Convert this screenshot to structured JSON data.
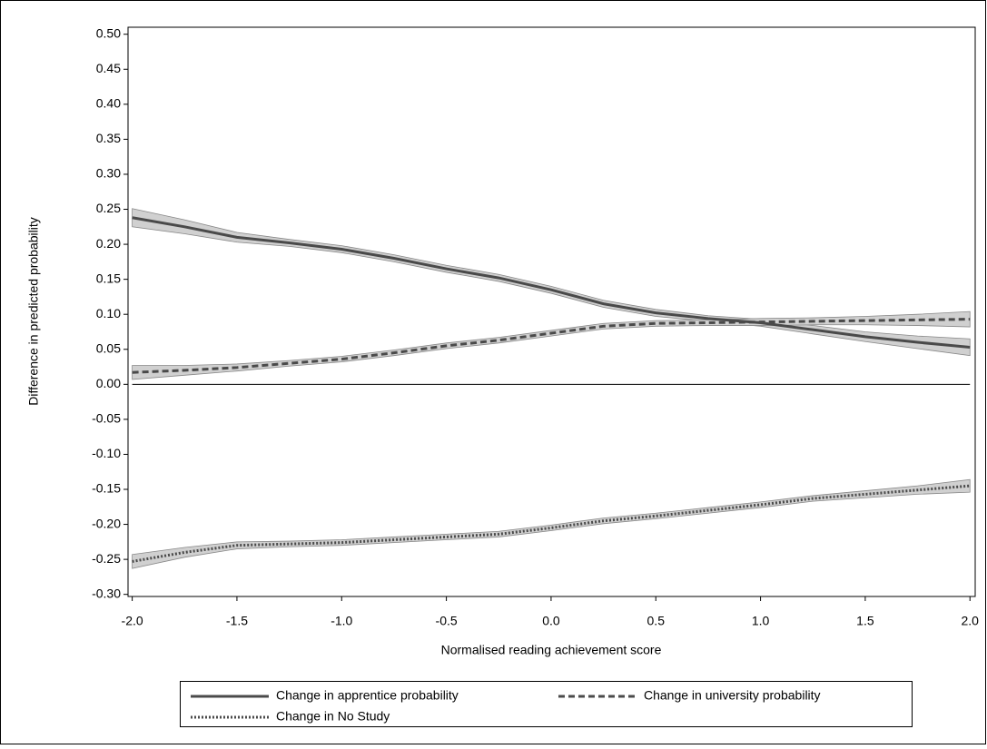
{
  "chart_data": {
    "type": "line",
    "x_label": "Normalised reading achievement score",
    "y_label": "Difference in predicted probability",
    "x": [
      -2,
      -1.75,
      -1.5,
      -1.25,
      -1,
      -0.75,
      -0.5,
      -0.25,
      0,
      0.25,
      0.5,
      0.75,
      1,
      1.25,
      1.5,
      1.75,
      2
    ],
    "series": [
      {
        "name": "Change in apprentice probability",
        "color": "#4a4a4a",
        "dash": "solid",
        "values": [
          0.238,
          0.225,
          0.21,
          0.202,
          0.193,
          0.18,
          0.165,
          0.152,
          0.135,
          0.115,
          0.102,
          0.094,
          0.088,
          0.078,
          0.068,
          0.06,
          0.053
        ],
        "lower": [
          0.225,
          0.215,
          0.203,
          0.197,
          0.188,
          0.175,
          0.16,
          0.147,
          0.13,
          0.11,
          0.097,
          0.09,
          0.083,
          0.072,
          0.061,
          0.051,
          0.041
        ],
        "upper": [
          0.251,
          0.235,
          0.217,
          0.207,
          0.198,
          0.185,
          0.17,
          0.157,
          0.14,
          0.12,
          0.107,
          0.098,
          0.093,
          0.084,
          0.075,
          0.069,
          0.065
        ]
      },
      {
        "name": "Change in university probability",
        "color": "#4a4a4a",
        "dash": "dashed",
        "values": [
          0.017,
          0.02,
          0.024,
          0.03,
          0.036,
          0.045,
          0.055,
          0.063,
          0.073,
          0.083,
          0.087,
          0.088,
          0.089,
          0.09,
          0.091,
          0.092,
          0.093
        ],
        "lower": [
          0.007,
          0.013,
          0.019,
          0.026,
          0.032,
          0.041,
          0.051,
          0.059,
          0.069,
          0.079,
          0.083,
          0.084,
          0.084,
          0.085,
          0.085,
          0.084,
          0.082
        ],
        "upper": [
          0.027,
          0.027,
          0.029,
          0.034,
          0.04,
          0.049,
          0.059,
          0.067,
          0.077,
          0.087,
          0.091,
          0.092,
          0.094,
          0.095,
          0.097,
          0.1,
          0.104
        ]
      },
      {
        "name": "Change in No Study",
        "color": "#4a4a4a",
        "dash": "dotted",
        "values": [
          -0.253,
          -0.24,
          -0.23,
          -0.228,
          -0.226,
          -0.222,
          -0.218,
          -0.214,
          -0.205,
          -0.195,
          -0.188,
          -0.18,
          -0.172,
          -0.163,
          -0.157,
          -0.151,
          -0.145
        ],
        "lower": [
          -0.263,
          -0.247,
          -0.235,
          -0.232,
          -0.23,
          -0.226,
          -0.222,
          -0.218,
          -0.209,
          -0.199,
          -0.192,
          -0.184,
          -0.176,
          -0.167,
          -0.162,
          -0.157,
          -0.154
        ],
        "upper": [
          -0.243,
          -0.233,
          -0.225,
          -0.224,
          -0.222,
          -0.218,
          -0.214,
          -0.21,
          -0.201,
          -0.191,
          -0.184,
          -0.176,
          -0.168,
          -0.159,
          -0.152,
          -0.145,
          -0.136
        ]
      }
    ],
    "band_color": "#d0d0d0",
    "reference_line": 0,
    "xlim": [
      -2.02,
      2.025
    ],
    "ylim": [
      -0.303,
      0.51
    ],
    "xticks": [
      {
        "value": -2,
        "label": "-2.0"
      },
      {
        "value": -1.5,
        "label": "-1.5"
      },
      {
        "value": -1,
        "label": "-1.0"
      },
      {
        "value": -0.5,
        "label": "-0.5"
      },
      {
        "value": 0,
        "label": "0.0"
      },
      {
        "value": 0.5,
        "label": "0.5"
      },
      {
        "value": 1,
        "label": "1.0"
      },
      {
        "value": 1.5,
        "label": "1.5"
      },
      {
        "value": 2,
        "label": "2.0"
      }
    ],
    "yticks": [
      {
        "value": -0.3,
        "label": "-0.30"
      },
      {
        "value": -0.25,
        "label": "-0.25"
      },
      {
        "value": -0.2,
        "label": "-0.20"
      },
      {
        "value": -0.15,
        "label": "-0.15"
      },
      {
        "value": -0.1,
        "label": "-0.10"
      },
      {
        "value": -0.05,
        "label": "-0.05"
      },
      {
        "value": 0,
        "label": "0.00"
      },
      {
        "value": 0.05,
        "label": "0.05"
      },
      {
        "value": 0.1,
        "label": "0.10"
      },
      {
        "value": 0.15,
        "label": "0.15"
      },
      {
        "value": 0.2,
        "label": "0.20"
      },
      {
        "value": 0.25,
        "label": "0.25"
      },
      {
        "value": 0.3,
        "label": "0.30"
      },
      {
        "value": 0.35,
        "label": "0.35"
      },
      {
        "value": 0.4,
        "label": "0.40"
      },
      {
        "value": 0.45,
        "label": "0.45"
      },
      {
        "value": 0.5,
        "label": "0.50"
      }
    ],
    "legend": "bottom",
    "grid": false
  }
}
